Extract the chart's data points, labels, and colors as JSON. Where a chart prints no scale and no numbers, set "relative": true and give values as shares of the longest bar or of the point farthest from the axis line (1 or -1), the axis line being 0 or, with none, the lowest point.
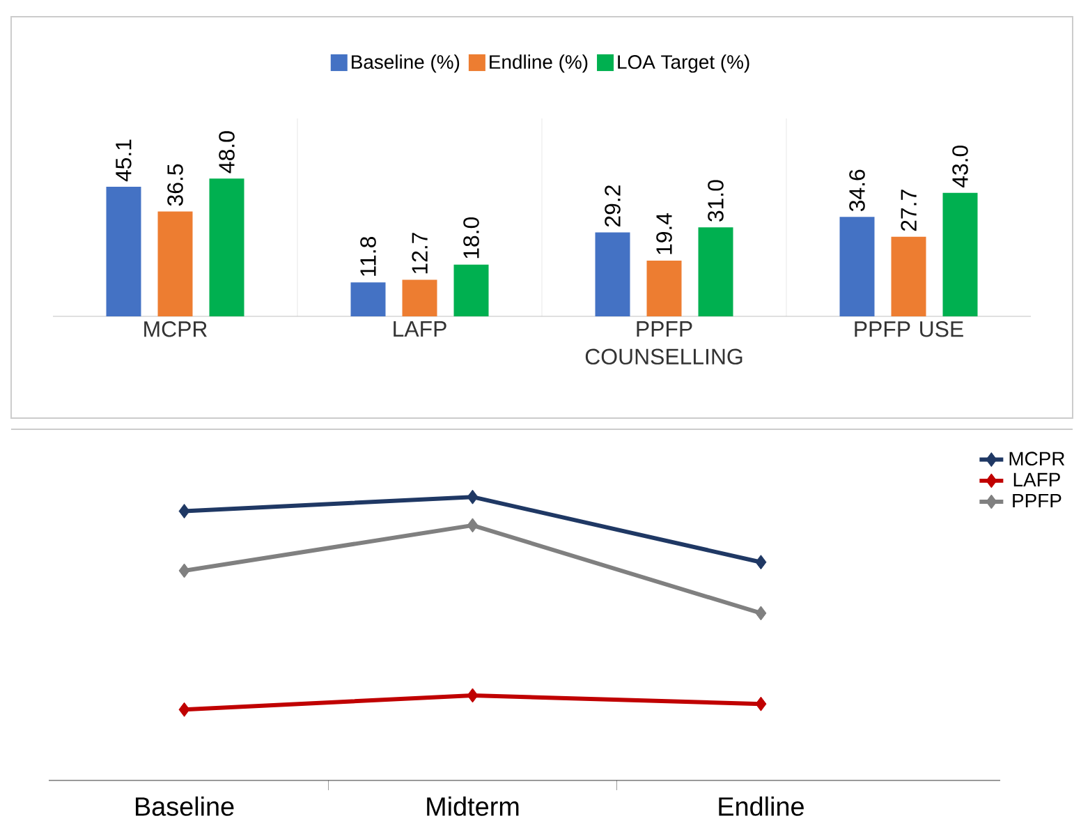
{
  "chart_data": [
    {
      "type": "bar",
      "categories": [
        "MCPR",
        "LAFP",
        "PPFP COUNSELLING",
        "PPFP USE"
      ],
      "series": [
        {
          "name": "Baseline (%)",
          "color": "#4472c4",
          "values": [
            45.1,
            11.8,
            29.2,
            34.6
          ],
          "value_labels": [
            "45.1",
            "11.8",
            "29.2",
            "34.6"
          ]
        },
        {
          "name": "Endline (%)",
          "color": "#ed7d31",
          "values": [
            36.5,
            12.7,
            19.4,
            27.7
          ],
          "value_labels": [
            "36.5",
            "12.7",
            "19.4",
            "27.7"
          ]
        },
        {
          "name": "LOA Target (%)",
          "color": "#00b050",
          "values": [
            48,
            18,
            31,
            43
          ],
          "value_labels": [
            "48.0",
            "18.0",
            "31.0",
            "43.0"
          ]
        }
      ],
      "legend": "top"
    },
    {
      "type": "line",
      "relative": true,
      "categories": [
        "Baseline",
        "Midterm",
        "Endline"
      ],
      "series": [
        {
          "name": "MCPR",
          "color": "#1f3864",
          "values": [
            0.95,
            1.0,
            0.77
          ]
        },
        {
          "name": "LAFP",
          "color": "#c00000",
          "values": [
            0.25,
            0.3,
            0.27
          ]
        },
        {
          "name": "PPFP",
          "color": "#808080",
          "values": [
            0.74,
            0.9,
            0.59
          ]
        }
      ],
      "marker": "diamond",
      "legend": "top right"
    }
  ]
}
